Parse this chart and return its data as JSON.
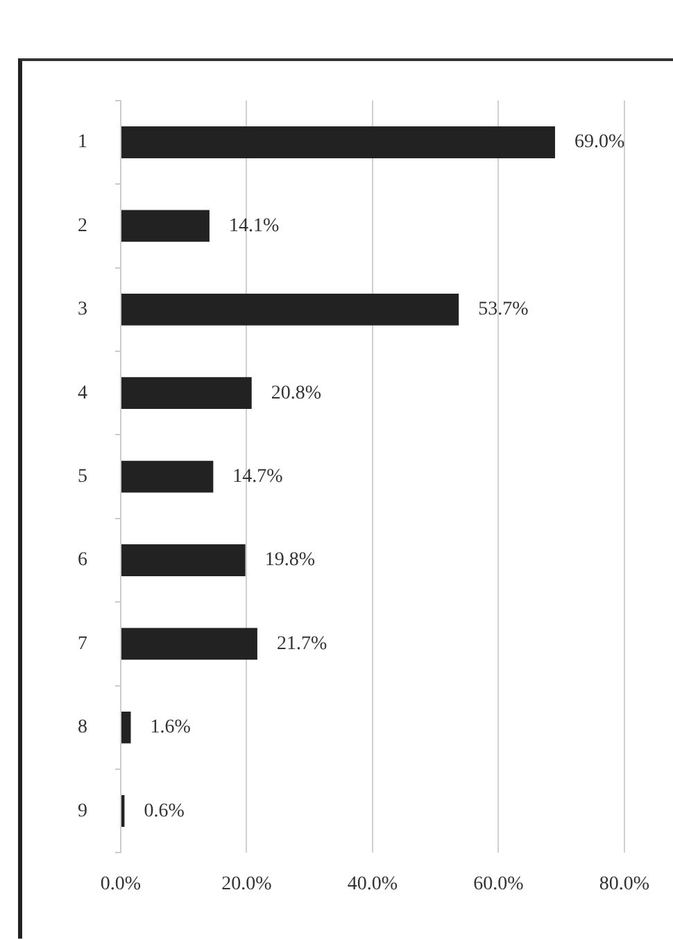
{
  "chart_data": {
    "type": "bar",
    "orientation": "horizontal",
    "categories": [
      "1",
      "2",
      "3",
      "4",
      "5",
      "6",
      "7",
      "8",
      "9"
    ],
    "values": [
      69.0,
      14.1,
      53.7,
      20.8,
      14.7,
      19.8,
      21.7,
      1.6,
      0.6
    ],
    "value_labels": [
      "69.0%",
      "14.1%",
      "53.7%",
      "20.8%",
      "14.7%",
      "19.8%",
      "21.7%",
      "1.6%",
      "0.6%"
    ],
    "color": "#222222",
    "xlim": [
      0,
      80
    ],
    "xticks": [
      {
        "value": 0,
        "label": "0.0%"
      },
      {
        "value": 20,
        "label": "20.0%"
      },
      {
        "value": 40,
        "label": "40.0%"
      },
      {
        "value": 60,
        "label": "60.0%"
      },
      {
        "value": 80,
        "label": "80.0%"
      }
    ],
    "grid": "x",
    "legend": false
  }
}
